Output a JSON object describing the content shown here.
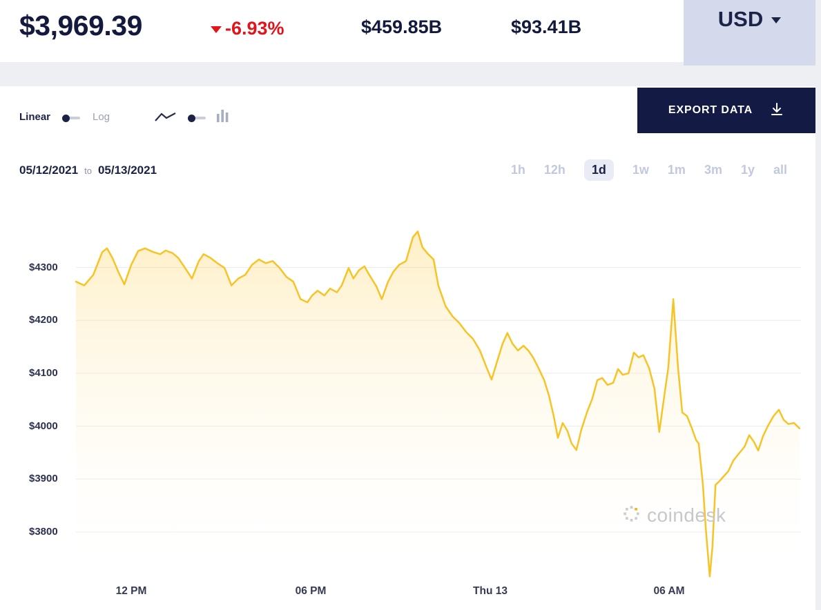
{
  "header": {
    "price": "$3,969.39",
    "change": "-6.93%",
    "market_cap": "$459.85B",
    "volume": "$93.41B",
    "currency": "USD"
  },
  "toolbar": {
    "scale_linear": "Linear",
    "scale_log": "Log",
    "export_label": "EXPORT DATA"
  },
  "date_range": {
    "start": "05/12/2021",
    "to_label": "to",
    "end": "05/13/2021"
  },
  "range_tabs": [
    {
      "label": "1h",
      "active": false
    },
    {
      "label": "12h",
      "active": false
    },
    {
      "label": "1d",
      "active": true
    },
    {
      "label": "1w",
      "active": false
    },
    {
      "label": "1m",
      "active": false
    },
    {
      "label": "3m",
      "active": false
    },
    {
      "label": "1y",
      "active": false
    },
    {
      "label": "all",
      "active": false
    }
  ],
  "watermark": "coindesk",
  "colors": {
    "navy": "#131b45",
    "red": "#e3131b",
    "gold": "#f7c325",
    "lavender": "#d5d9ec",
    "inactive_tab": "#c2c8dd",
    "page_bg": "#edeff3"
  },
  "chart_data": {
    "type": "area",
    "title": "Price (USD), 05/12/2021 to 05/13/2021, 1d range",
    "x_unit": "hours from window start",
    "x_range": [
      0,
      24.25
    ],
    "y_range": [
      3710,
      4375
    ],
    "y_ticks": [
      4300,
      4200,
      4100,
      4000,
      3900,
      3800
    ],
    "y_tick_labels": [
      "$4300",
      "$4200",
      "$4100",
      "$4000",
      "$3900",
      "$3800"
    ],
    "x_ticks": [
      {
        "t": 1.85,
        "label": "12 PM"
      },
      {
        "t": 7.85,
        "label": "06 PM"
      },
      {
        "t": 13.85,
        "label": "Thu 13"
      },
      {
        "t": 19.85,
        "label": "06 AM"
      }
    ],
    "grid_color": "#ececef",
    "line_color": "#f7c325",
    "fill_top": "rgba(250,202,64,0.30)",
    "fill_bottom": "rgba(255,255,255,0)",
    "points": [
      [
        0,
        4273
      ],
      [
        0.28,
        4266
      ],
      [
        0.58,
        4286
      ],
      [
        0.88,
        4329
      ],
      [
        1.04,
        4336
      ],
      [
        1.22,
        4318
      ],
      [
        1.43,
        4290
      ],
      [
        1.62,
        4268
      ],
      [
        1.85,
        4305
      ],
      [
        2.08,
        4331
      ],
      [
        2.31,
        4336
      ],
      [
        2.59,
        4329
      ],
      [
        2.82,
        4325
      ],
      [
        3,
        4332
      ],
      [
        3.23,
        4327
      ],
      [
        3.42,
        4318
      ],
      [
        3.65,
        4299
      ],
      [
        3.88,
        4279
      ],
      [
        4.11,
        4312
      ],
      [
        4.27,
        4325
      ],
      [
        4.5,
        4318
      ],
      [
        4.73,
        4308
      ],
      [
        4.97,
        4299
      ],
      [
        5.2,
        4266
      ],
      [
        5.43,
        4279
      ],
      [
        5.66,
        4286
      ],
      [
        5.89,
        4305
      ],
      [
        6.12,
        4315
      ],
      [
        6.35,
        4308
      ],
      [
        6.58,
        4312
      ],
      [
        6.81,
        4299
      ],
      [
        7.04,
        4282
      ],
      [
        7.27,
        4273
      ],
      [
        7.51,
        4240
      ],
      [
        7.74,
        4234
      ],
      [
        7.9,
        4247
      ],
      [
        8.08,
        4256
      ],
      [
        8.31,
        4247
      ],
      [
        8.5,
        4260
      ],
      [
        8.73,
        4253
      ],
      [
        8.89,
        4266
      ],
      [
        9.12,
        4299
      ],
      [
        9.28,
        4279
      ],
      [
        9.47,
        4295
      ],
      [
        9.65,
        4302
      ],
      [
        9.81,
        4286
      ],
      [
        10.05,
        4264
      ],
      [
        10.23,
        4240
      ],
      [
        10.44,
        4273
      ],
      [
        10.62,
        4292
      ],
      [
        10.81,
        4305
      ],
      [
        11.04,
        4312
      ],
      [
        11.27,
        4357
      ],
      [
        11.43,
        4368
      ],
      [
        11.59,
        4338
      ],
      [
        11.78,
        4325
      ],
      [
        11.96,
        4315
      ],
      [
        12.12,
        4266
      ],
      [
        12.36,
        4227
      ],
      [
        12.59,
        4208
      ],
      [
        12.82,
        4195
      ],
      [
        13.05,
        4178
      ],
      [
        13.28,
        4165
      ],
      [
        13.51,
        4143
      ],
      [
        13.74,
        4110
      ],
      [
        13.9,
        4088
      ],
      [
        14.09,
        4123
      ],
      [
        14.27,
        4156
      ],
      [
        14.43,
        4176
      ],
      [
        14.6,
        4156
      ],
      [
        14.78,
        4143
      ],
      [
        14.97,
        4152
      ],
      [
        15.13,
        4143
      ],
      [
        15.29,
        4130
      ],
      [
        15.47,
        4110
      ],
      [
        15.66,
        4087
      ],
      [
        15.82,
        4058
      ],
      [
        15.98,
        4019
      ],
      [
        16.12,
        3978
      ],
      [
        16.28,
        4006
      ],
      [
        16.44,
        3991
      ],
      [
        16.58,
        3967
      ],
      [
        16.74,
        3955
      ],
      [
        16.9,
        3993
      ],
      [
        17.09,
        4026
      ],
      [
        17.27,
        4052
      ],
      [
        17.44,
        4087
      ],
      [
        17.6,
        4091
      ],
      [
        17.78,
        4078
      ],
      [
        17.97,
        4082
      ],
      [
        18.13,
        4108
      ],
      [
        18.29,
        4097
      ],
      [
        18.48,
        4100
      ],
      [
        18.66,
        4139
      ],
      [
        18.82,
        4130
      ],
      [
        18.98,
        4134
      ],
      [
        19.17,
        4110
      ],
      [
        19.35,
        4071
      ],
      [
        19.51,
        3989
      ],
      [
        19.68,
        4058
      ],
      [
        19.81,
        4110
      ],
      [
        19.98,
        4240
      ],
      [
        20.14,
        4110
      ],
      [
        20.28,
        4026
      ],
      [
        20.44,
        4019
      ],
      [
        20.6,
        3996
      ],
      [
        20.74,
        3974
      ],
      [
        20.83,
        3967
      ],
      [
        20.97,
        3889
      ],
      [
        21.06,
        3811
      ],
      [
        21.2,
        3716
      ],
      [
        21.29,
        3772
      ],
      [
        21.39,
        3889
      ],
      [
        21.52,
        3896
      ],
      [
        21.66,
        3905
      ],
      [
        21.82,
        3915
      ],
      [
        21.99,
        3935
      ],
      [
        22.17,
        3948
      ],
      [
        22.36,
        3961
      ],
      [
        22.52,
        3983
      ],
      [
        22.68,
        3970
      ],
      [
        22.82,
        3954
      ],
      [
        22.98,
        3981
      ],
      [
        23.14,
        4000
      ],
      [
        23.33,
        4019
      ],
      [
        23.51,
        4031
      ],
      [
        23.67,
        4012
      ],
      [
        23.83,
        4004
      ],
      [
        24.02,
        4006
      ],
      [
        24.2,
        3996
      ]
    ]
  }
}
